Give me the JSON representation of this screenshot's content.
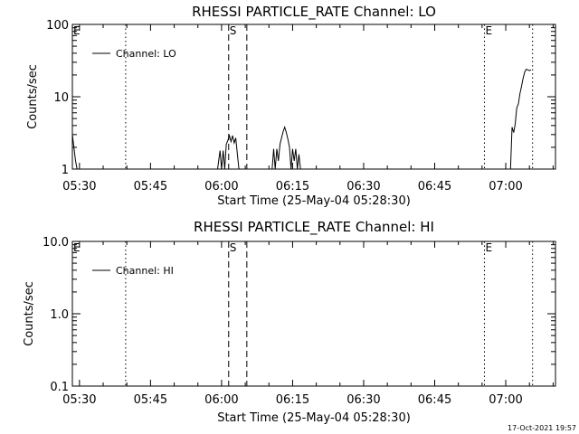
{
  "chart_data": [
    {
      "type": "line",
      "title": "RHESSI PARTICLE_RATE Channel: LO",
      "xlabel": "Start Time (25-May-04 05:28:30)",
      "ylabel": "Counts/sec",
      "y_scale": "log",
      "ylim": [
        1,
        100
      ],
      "xlim": [
        "05:28:30",
        "07:10:30"
      ],
      "y_ticks": [
        "1",
        "10",
        "100"
      ],
      "x_ticks": [
        "05:30",
        "05:45",
        "06:00",
        "06:15",
        "06:30",
        "06:45",
        "07:00"
      ],
      "legend": {
        "position": "top-left",
        "entries": [
          "Channel: LO"
        ]
      },
      "markers": [
        {
          "label": "E",
          "time": "05:28:30",
          "style": "dotted"
        },
        {
          "label": "",
          "time": "05:39:45",
          "style": "dotted"
        },
        {
          "label": "S",
          "time": "06:01:30",
          "style": "dashed"
        },
        {
          "label": "",
          "time": "06:05:20",
          "style": "dashed"
        },
        {
          "label": "E",
          "time": "06:55:30",
          "style": "dotted"
        },
        {
          "label": "",
          "time": "07:05:40",
          "style": "dotted"
        }
      ],
      "series": [
        {
          "name": "Channel: LO",
          "segments": [
            [
              [
                "05:28:30",
                3.0
              ],
              [
                "05:28:50",
                2.0
              ],
              [
                "05:29:10",
                1.3
              ],
              [
                "05:29:30",
                1.0
              ]
            ],
            [
              [
                "05:59:10",
                1.0
              ],
              [
                "05:59:40",
                1.8
              ],
              [
                "06:00:00",
                1.0
              ],
              [
                "06:00:20",
                1.8
              ],
              [
                "06:00:40",
                1.0
              ],
              [
                "06:01:00",
                2.2
              ],
              [
                "06:01:20",
                2.5
              ],
              [
                "06:01:40",
                2.9
              ],
              [
                "06:02:00",
                2.4
              ],
              [
                "06:02:20",
                2.9
              ],
              [
                "06:02:40",
                2.3
              ],
              [
                "06:03:00",
                2.7
              ],
              [
                "06:03:20",
                1.6
              ],
              [
                "06:03:40",
                1.0
              ]
            ],
            [
              [
                "06:10:40",
                1.0
              ],
              [
                "06:11:00",
                1.9
              ],
              [
                "06:11:20",
                1.0
              ],
              [
                "06:11:40",
                1.9
              ],
              [
                "06:12:00",
                1.3
              ],
              [
                "06:12:20",
                2.2
              ],
              [
                "06:12:40",
                2.7
              ],
              [
                "06:13:00",
                3.3
              ],
              [
                "06:13:20",
                3.8
              ],
              [
                "06:13:40",
                3.2
              ],
              [
                "06:14:00",
                2.6
              ],
              [
                "06:14:20",
                2.0
              ],
              [
                "06:14:40",
                1.0
              ],
              [
                "06:15:00",
                1.9
              ],
              [
                "06:15:20",
                1.3
              ],
              [
                "06:15:40",
                1.9
              ],
              [
                "06:16:00",
                1.0
              ],
              [
                "06:16:20",
                1.6
              ],
              [
                "06:16:40",
                1.0
              ]
            ],
            [
              [
                "07:01:00",
                1.0
              ],
              [
                "07:01:20",
                3.8
              ],
              [
                "07:01:40",
                3.2
              ],
              [
                "07:02:00",
                4.2
              ],
              [
                "07:02:20",
                7.0
              ],
              [
                "07:02:40",
                8.0
              ],
              [
                "07:03:00",
                11.0
              ],
              [
                "07:03:20",
                14.0
              ],
              [
                "07:03:40",
                18.0
              ],
              [
                "07:04:00",
                22.0
              ],
              [
                "07:04:20",
                24.0
              ],
              [
                "07:04:40",
                23.5
              ],
              [
                "07:05:00",
                23.0
              ],
              [
                "07:05:20",
                23.5
              ]
            ]
          ]
        }
      ]
    },
    {
      "type": "line",
      "title": "RHESSI PARTICLE_RATE Channel: HI",
      "xlabel": "Start Time (25-May-04 05:28:30)",
      "ylabel": "Counts/sec",
      "y_scale": "log",
      "ylim": [
        0.1,
        10
      ],
      "xlim": [
        "05:28:30",
        "07:10:30"
      ],
      "y_ticks": [
        "0.1",
        "1.0",
        "10.0"
      ],
      "x_ticks": [
        "05:30",
        "05:45",
        "06:00",
        "06:15",
        "06:30",
        "06:45",
        "07:00"
      ],
      "legend": {
        "position": "top-left",
        "entries": [
          "Channel: HI"
        ]
      },
      "markers": [
        {
          "label": "E",
          "time": "05:28:30",
          "style": "dotted"
        },
        {
          "label": "",
          "time": "05:39:45",
          "style": "dotted"
        },
        {
          "label": "S",
          "time": "06:01:30",
          "style": "dashed"
        },
        {
          "label": "",
          "time": "06:05:20",
          "style": "dashed"
        },
        {
          "label": "E",
          "time": "06:55:30",
          "style": "dotted"
        },
        {
          "label": "",
          "time": "07:05:40",
          "style": "dotted"
        }
      ],
      "series": [
        {
          "name": "Channel: HI",
          "segments": []
        }
      ]
    }
  ],
  "footer": {
    "timestamp": "17-Oct-2021 19:57"
  },
  "colors": {
    "background": "#ffffff",
    "foreground": "#000000"
  }
}
